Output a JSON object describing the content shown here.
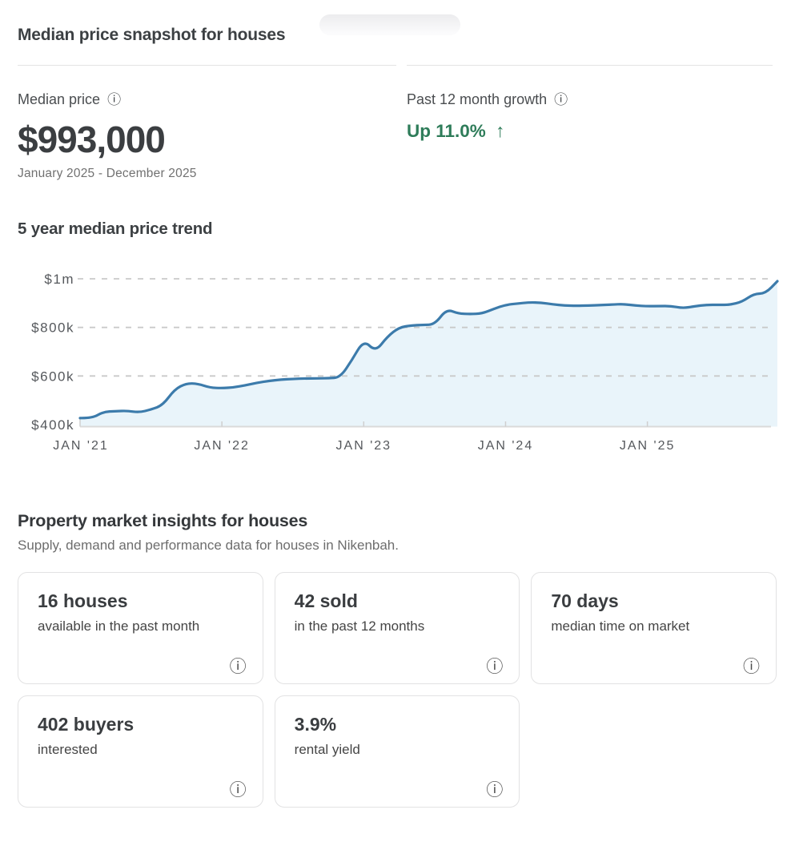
{
  "icons": {
    "info": "ⓘ",
    "up_arrow": "↑"
  },
  "snapshot": {
    "title": "Median price snapshot for houses",
    "median_price": {
      "label": "Median price",
      "value": "$993,000",
      "period": "January 2025 - December 2025"
    },
    "growth": {
      "label": "Past 12 month growth",
      "value": "Up 11.0%",
      "color": "#2e7c59"
    }
  },
  "trend": {
    "title": "5 year median price trend"
  },
  "insights": {
    "title": "Property market insights for houses",
    "subtitle": "Supply, demand and performance data for houses in Nikenbah.",
    "cards": [
      {
        "value": "16 houses",
        "label": "available in the past month"
      },
      {
        "value": "42 sold",
        "label": "in the past 12 months"
      },
      {
        "value": "70 days",
        "label": "median time on market"
      },
      {
        "value": "402 buyers",
        "label": "interested"
      },
      {
        "value": "3.9%",
        "label": "rental yield"
      }
    ]
  },
  "chart_data": {
    "type": "area",
    "title": "5 year median price trend",
    "x_start": "2021-01",
    "x_end": "2025-12",
    "interval": "monthly",
    "x_tick_labels": [
      "JAN '21",
      "JAN '22",
      "JAN '23",
      "JAN '24",
      "JAN '25"
    ],
    "x_tick_month_indices": [
      0,
      12,
      24,
      36,
      48
    ],
    "y_tick_labels": [
      "$1m",
      "$800k",
      "$600k",
      "$400k"
    ],
    "y_tick_values_thousands": [
      1000,
      800,
      600,
      400
    ],
    "ylim_thousands": [
      400,
      1000
    ],
    "grid": "dashed horizontal",
    "legend": "none",
    "line_color": "#3c7bab",
    "fill_color": "#e9f4fa",
    "values_thousands": [
      427,
      426,
      453,
      455,
      457,
      450,
      462,
      480,
      545,
      570,
      568,
      552,
      550,
      553,
      562,
      572,
      580,
      585,
      588,
      590,
      590,
      591,
      594,
      665,
      748,
      700,
      762,
      800,
      808,
      810,
      812,
      875,
      857,
      855,
      857,
      876,
      893,
      898,
      903,
      902,
      895,
      890,
      889,
      890,
      892,
      894,
      896,
      890,
      887,
      888,
      888,
      879,
      887,
      893,
      893,
      893,
      905,
      938,
      940,
      990
    ]
  }
}
